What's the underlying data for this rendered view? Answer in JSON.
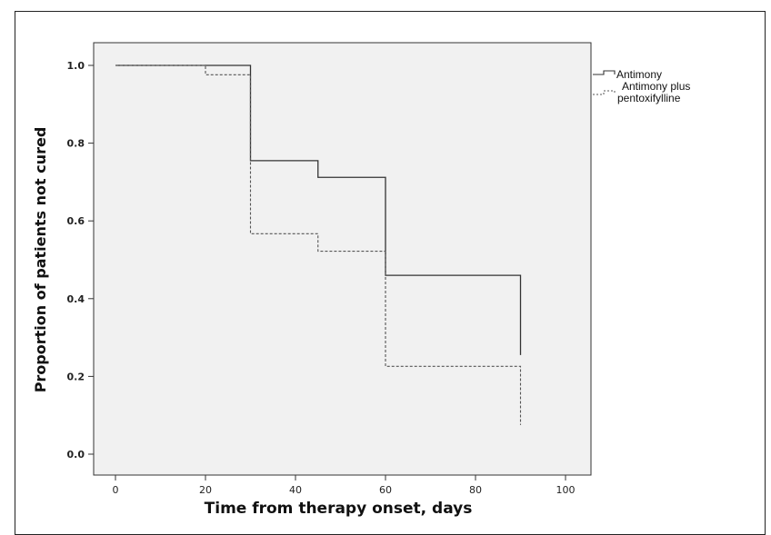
{
  "chart_data": {
    "type": "line",
    "title": "",
    "xlabel": "Time from therapy onset, days",
    "ylabel": "Proportion of patients not cured",
    "xlim": [
      0,
      100
    ],
    "ylim": [
      0.0,
      1.0
    ],
    "xticks": [
      "0",
      "20",
      "40",
      "60",
      "80",
      "100"
    ],
    "yticks": [
      "0.0",
      "0.2",
      "0.4",
      "0.6",
      "0.8",
      "1.0"
    ],
    "grid": false,
    "legend_position": "top-right outside",
    "plot_background": "#f1f1f1",
    "series": [
      {
        "name": "Antimony",
        "line_style": "solid",
        "color": "#333333",
        "x": [
          0,
          30,
          45,
          60,
          90
        ],
        "y": [
          1.0,
          0.755,
          0.712,
          0.46,
          0.255
        ]
      },
      {
        "name": "Antimony plus pentoxifylline",
        "name_lines": [
          "Antimony plus",
          "pentoxifylline"
        ],
        "line_style": "dashed",
        "color": "#555555",
        "x": [
          0,
          20,
          30,
          45,
          60,
          90
        ],
        "y": [
          1.0,
          0.976,
          0.567,
          0.522,
          0.226,
          0.075
        ]
      }
    ]
  }
}
